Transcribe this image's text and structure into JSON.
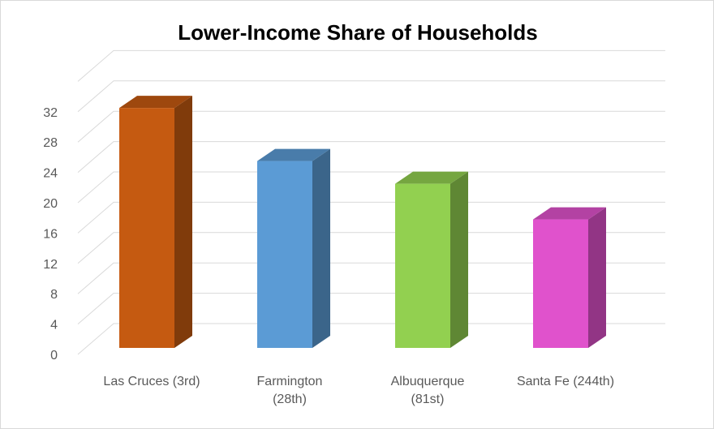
{
  "chart_data": {
    "type": "bar",
    "title": "Lower-Income Share of Households",
    "categories": [
      [
        "Las Cruces (3rd)"
      ],
      [
        "Farmington",
        "(28th)"
      ],
      [
        "Albuquerque",
        "(81st)"
      ],
      [
        "Santa Fe (244th)"
      ]
    ],
    "values": [
      32.5,
      25.5,
      22.5,
      17.8
    ],
    "colors": [
      "#c55a11",
      "#5b9bd5",
      "#92d050",
      "#e052cc"
    ],
    "yticks": [
      0,
      4,
      8,
      12,
      16,
      20,
      24,
      28,
      32
    ],
    "ylim": [
      0,
      32
    ],
    "grid": true,
    "xlabel": "",
    "ylabel": "",
    "style": "3d-column"
  }
}
